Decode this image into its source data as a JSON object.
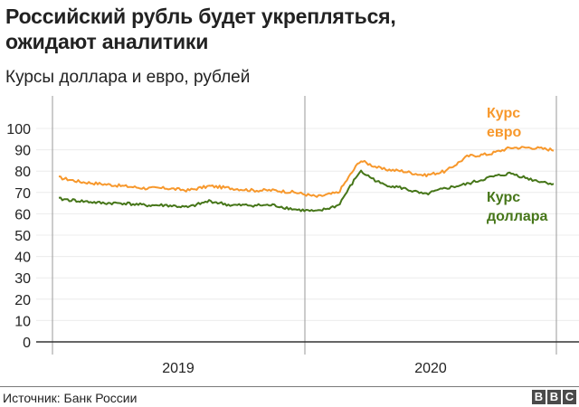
{
  "header": {
    "title_line1": "Российский рубль будет укрепляться,",
    "title_line2": "ожидают аналитики",
    "subtitle": "Курсы доллара и евро, рублей"
  },
  "footer": {
    "source": "Источник: Банк России",
    "logo_letters": [
      "B",
      "B",
      "C"
    ]
  },
  "colors": {
    "euro": "#f7982c",
    "dollar": "#467619",
    "grid": "#ececec",
    "axis": "#333333"
  },
  "labels": {
    "euro_line1": "Курс",
    "euro_line2": "евро",
    "dollar_line1": "Курс",
    "dollar_line2": "доллара"
  },
  "chart_data": {
    "type": "line",
    "title": "Российский рубль будет укрепляться, ожидают аналитики",
    "subtitle": "Курсы доллара и евро, рублей",
    "xlabel": "",
    "ylabel": "",
    "ylim": [
      0,
      100
    ],
    "yticks": [
      0,
      10,
      20,
      30,
      40,
      50,
      60,
      70,
      80,
      90,
      100
    ],
    "xticks": [
      "2019",
      "2020"
    ],
    "grid": true,
    "legend_position": "inline-right",
    "x": [
      "2019-01",
      "2019-02",
      "2019-03",
      "2019-04",
      "2019-05",
      "2019-06",
      "2019-07",
      "2019-08",
      "2019-09",
      "2019-10",
      "2019-11",
      "2019-12",
      "2020-01",
      "2020-02",
      "2020-03",
      "2020-04",
      "2020-05",
      "2020-06",
      "2020-07",
      "2020-08",
      "2020-09",
      "2020-10",
      "2020-11",
      "2020-12"
    ],
    "series": [
      {
        "name": "Курс евро",
        "values": [
          77,
          75,
          74,
          73,
          72,
          72,
          71,
          73,
          72,
          71,
          71,
          70,
          68,
          70,
          85,
          81,
          80,
          78,
          80,
          87,
          88,
          91,
          91,
          90
        ]
      },
      {
        "name": "Курс доллара",
        "values": [
          67,
          66,
          65,
          65,
          64,
          64,
          63,
          66,
          64,
          64,
          64,
          62,
          61,
          64,
          80,
          74,
          72,
          69,
          72,
          74,
          77,
          79,
          76,
          74
        ]
      }
    ]
  }
}
